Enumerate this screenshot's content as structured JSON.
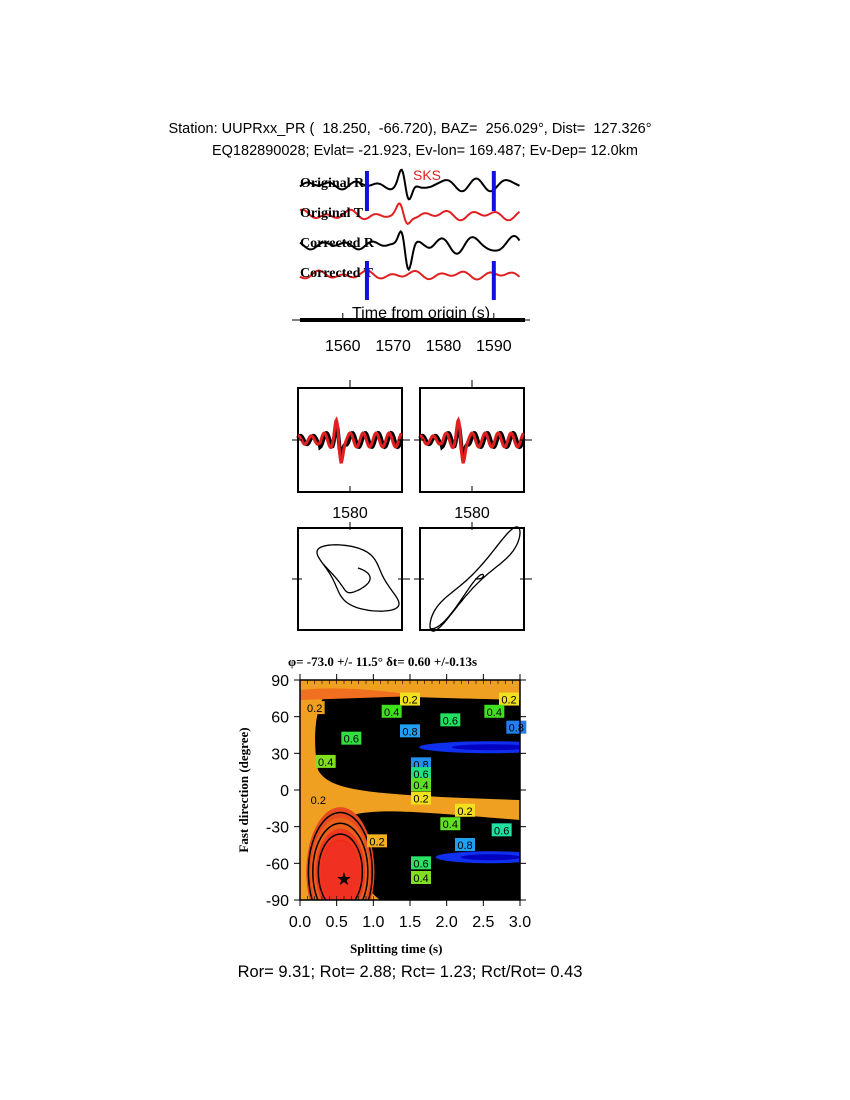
{
  "header": {
    "line1": "Station: UUPRxx_PR (  18.250,  -66.720), BAZ=  256.029°, Dist=  127.326°",
    "line2": "EQ182890028; Evlat= -21.923, Ev-lon= 169.487; Ev-Dep= 12.0km"
  },
  "chart_data": [
    {
      "type": "line",
      "title": "",
      "phase_label": "SKS",
      "xlabel": "Time from origin (s)",
      "xticks": [
        "1560",
        "1570",
        "1580",
        "1590"
      ],
      "xlim": [
        1551.5,
        1595.2
      ],
      "window_markers_s": [
        1564.8,
        1590.0
      ],
      "series": [
        {
          "name": "Original R",
          "color": "#000000"
        },
        {
          "name": "Original T",
          "color": "#e02020"
        },
        {
          "name": "Corrected R",
          "color": "#000000"
        },
        {
          "name": "Corrected T",
          "color": "#e02020"
        }
      ],
      "marker_color": "#1010e0"
    },
    {
      "type": "line",
      "panels": [
        {
          "xtick": "1580",
          "series_colors": [
            "#000000",
            "#e02020"
          ]
        },
        {
          "xtick": "1580",
          "series_colors": [
            "#000000",
            "#e02020"
          ]
        }
      ]
    },
    {
      "type": "line",
      "panels": [
        "particle-motion-original",
        "particle-motion-corrected"
      ]
    },
    {
      "type": "heatmap",
      "title": "φ= -73.0 +/- 11.5° δt= 0.60 +/-0.13s",
      "xlabel": "Splitting time (s)",
      "ylabel": "Fast direction (degree)",
      "xlim": [
        0.0,
        3.0
      ],
      "ylim": [
        -90,
        90
      ],
      "xticks": [
        "0.0",
        "0.5",
        "1.0",
        "1.5",
        "2.0",
        "2.5",
        "3.0"
      ],
      "yticks": [
        "90",
        "60",
        "30",
        "0",
        "-30",
        "-60",
        "-90"
      ],
      "best_fit": {
        "dt": 0.6,
        "phi": -73.0
      },
      "contour_labels": [
        {
          "text": "0.2",
          "dt": 0.2,
          "phi": 67,
          "color": "#f0a020"
        },
        {
          "text": "0.2",
          "dt": 1.5,
          "phi": 74,
          "color": "#f0e020"
        },
        {
          "text": "0.2",
          "dt": 2.85,
          "phi": 74,
          "color": "#f0e020"
        },
        {
          "text": "0.4",
          "dt": 1.25,
          "phi": 64,
          "color": "#40e020"
        },
        {
          "text": "0.4",
          "dt": 2.65,
          "phi": 64,
          "color": "#40e020"
        },
        {
          "text": "0.6",
          "dt": 2.05,
          "phi": 57,
          "color": "#20e060"
        },
        {
          "text": "0.8",
          "dt": 1.5,
          "phi": 48,
          "color": "#20a0f0"
        },
        {
          "text": "0.8",
          "dt": 2.95,
          "phi": 51,
          "color": "#2080f0"
        },
        {
          "text": "0.6",
          "dt": 0.7,
          "phi": 42,
          "color": "#30e040"
        },
        {
          "text": "0.4",
          "dt": 0.35,
          "phi": 23,
          "color": "#80e020"
        },
        {
          "text": "0.8",
          "dt": 1.65,
          "phi": 21,
          "color": "#2090f0"
        },
        {
          "text": "0.6",
          "dt": 1.65,
          "phi": 13,
          "color": "#20e080"
        },
        {
          "text": "0.4",
          "dt": 1.65,
          "phi": 4,
          "color": "#60e020"
        },
        {
          "text": "0.2",
          "dt": 1.65,
          "phi": -7,
          "color": "#f0e020"
        },
        {
          "text": "0.2",
          "dt": 0.25,
          "phi": -8,
          "color": "#f0a020"
        },
        {
          "text": "0.2",
          "dt": 2.25,
          "phi": -17,
          "color": "#f0e020"
        },
        {
          "text": "0.4",
          "dt": 2.05,
          "phi": -28,
          "color": "#60e020"
        },
        {
          "text": "0.6",
          "dt": 2.75,
          "phi": -33,
          "color": "#20e0a0"
        },
        {
          "text": "0.2",
          "dt": 1.05,
          "phi": -42,
          "color": "#f0b020"
        },
        {
          "text": "0.8",
          "dt": 2.25,
          "phi": -45,
          "color": "#20a0f0"
        },
        {
          "text": "0.6",
          "dt": 1.65,
          "phi": -60,
          "color": "#30e060"
        },
        {
          "text": "0.4",
          "dt": 1.65,
          "phi": -72,
          "color": "#80e020"
        }
      ]
    }
  ],
  "footer": "Ror= 9.31; Rot= 2.88; Rct= 1.23; Rct/Rot= 0.43"
}
